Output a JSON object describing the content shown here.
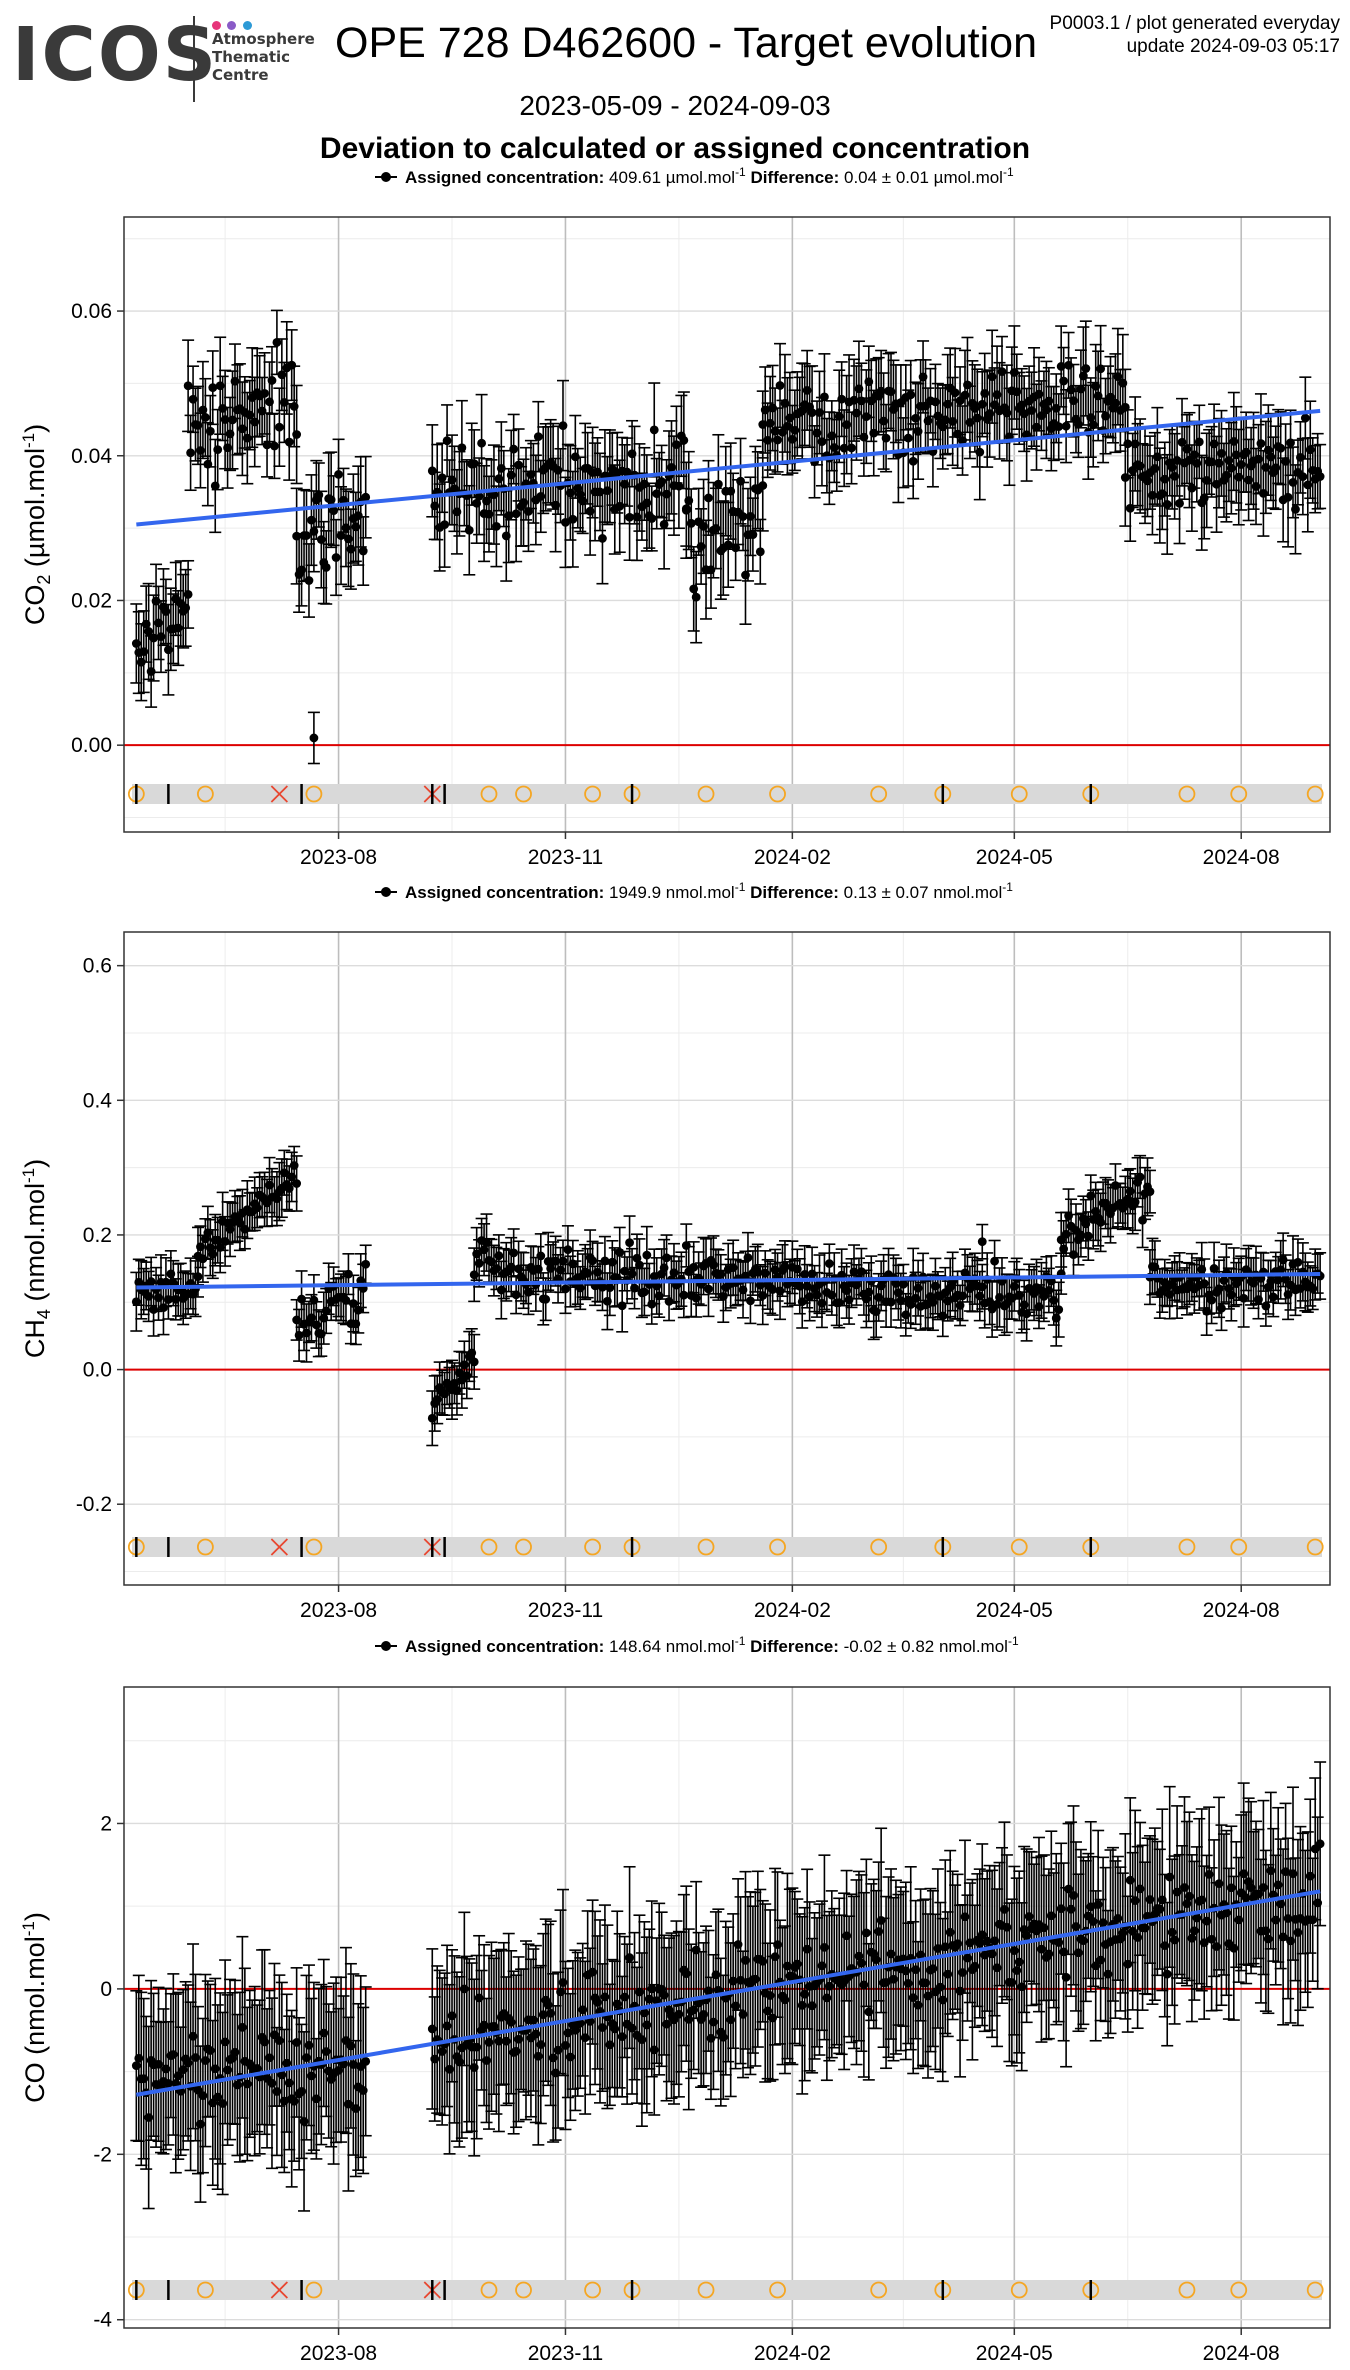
{
  "header": {
    "logo_word": "ICOS",
    "logo_lines": [
      "Atmosphere",
      "Thematic",
      "Centre"
    ],
    "logo_dot_colors": [
      "#e6357a",
      "#8a5bc7",
      "#2d9ad6"
    ],
    "title": "OPE 728 D462600 - Target evolution",
    "info_line1": "P0003.1 / plot generated everyday",
    "info_line2": "update  2024-09-03 05:17",
    "date_range": "2023-05-09 - 2024-09-03",
    "subtitle": "Deviation to calculated or assigned concentration"
  },
  "colors": {
    "points": "#000000",
    "trend": "#3366ee",
    "zero_line": "#dd0000",
    "marker_circle": "#f5a623",
    "marker_cross": "#e8462f",
    "marker_band": "#d9d9d9"
  },
  "x_tick_labels": [
    "2023-08",
    "2023-11",
    "2024-02",
    "2024-05",
    "2024-08"
  ],
  "x_tick_dates": [
    "2023-08-01",
    "2023-11-01",
    "2024-02-01",
    "2024-05-01",
    "2024-08-01"
  ],
  "event_markers": [
    {
      "date": "2023-05-11",
      "type": "circle"
    },
    {
      "date": "2023-05-11",
      "type": "vline"
    },
    {
      "date": "2023-05-24",
      "type": "vline"
    },
    {
      "date": "2023-06-08",
      "type": "circle"
    },
    {
      "date": "2023-07-08",
      "type": "cross"
    },
    {
      "date": "2023-07-17",
      "type": "vline"
    },
    {
      "date": "2023-07-22",
      "type": "circle"
    },
    {
      "date": "2023-09-08",
      "type": "cross"
    },
    {
      "date": "2023-09-08",
      "type": "vline"
    },
    {
      "date": "2023-09-13",
      "type": "vline"
    },
    {
      "date": "2023-10-01",
      "type": "circle"
    },
    {
      "date": "2023-10-15",
      "type": "circle"
    },
    {
      "date": "2023-11-12",
      "type": "circle"
    },
    {
      "date": "2023-11-28",
      "type": "circle"
    },
    {
      "date": "2023-11-28",
      "type": "vline"
    },
    {
      "date": "2023-12-28",
      "type": "circle"
    },
    {
      "date": "2024-01-26",
      "type": "circle"
    },
    {
      "date": "2024-03-07",
      "type": "circle"
    },
    {
      "date": "2024-04-02",
      "type": "circle"
    },
    {
      "date": "2024-04-02",
      "type": "vline"
    },
    {
      "date": "2024-05-03",
      "type": "circle"
    },
    {
      "date": "2024-06-01",
      "type": "circle"
    },
    {
      "date": "2024-06-01",
      "type": "vline"
    },
    {
      "date": "2024-07-10",
      "type": "circle"
    },
    {
      "date": "2024-07-31",
      "type": "circle"
    },
    {
      "date": "2024-08-31",
      "type": "circle"
    }
  ],
  "chart_data": [
    {
      "type": "scatter",
      "species": "CO2",
      "ylabel": "CO2 (µmol.mol-1)",
      "ylabel_main": "CO",
      "ylabel_sub": "2",
      "ylabel_unit": "µmol.mol",
      "legend_label": "Assigned concentration:",
      "assigned_value": "409.61 µmol.mol",
      "difference_label": "Difference:",
      "difference_value": "0.04 ± 0.01 µmol.mol",
      "unit_exponent": "-1",
      "xlim": [
        "2023-05-06",
        "2024-09-06"
      ],
      "ylim": [
        -0.012,
        0.073
      ],
      "y_ticks": [
        0.0,
        0.02,
        0.04,
        0.06
      ],
      "y_tick_labels": [
        "0.00",
        "0.02",
        "0.04",
        "0.06"
      ],
      "trend": {
        "start": [
          "2023-05-11",
          0.0305
        ],
        "end": [
          "2024-09-02",
          0.0462
        ]
      },
      "zero_line": 0,
      "error_bar": 0.0055,
      "segments": [
        {
          "start": "2023-05-11",
          "end": "2023-06-01",
          "base": 0.012,
          "slope_end": 0.02,
          "noise": 0.004
        },
        {
          "start": "2023-06-01",
          "end": "2023-07-15",
          "base": 0.045,
          "slope_end": 0.046,
          "noise": 0.006
        },
        {
          "start": "2023-07-15",
          "end": "2023-08-12",
          "base": 0.03,
          "slope_end": 0.03,
          "noise": 0.006
        },
        {
          "start": "2023-09-08",
          "end": "2023-12-20",
          "base": 0.035,
          "slope_end": 0.036,
          "noise": 0.006
        },
        {
          "start": "2023-12-20",
          "end": "2024-01-20",
          "base": 0.028,
          "slope_end": 0.033,
          "noise": 0.007
        },
        {
          "start": "2024-01-20",
          "end": "2024-06-15",
          "base": 0.045,
          "slope_end": 0.047,
          "noise": 0.005
        },
        {
          "start": "2024-06-15",
          "end": "2024-09-02",
          "base": 0.038,
          "slope_end": 0.039,
          "noise": 0.005
        }
      ],
      "outliers": [
        [
          "2023-07-22",
          0.001
        ]
      ]
    },
    {
      "type": "scatter",
      "species": "CH4",
      "ylabel": "CH4 (nmol.mol-1)",
      "ylabel_main": "CH",
      "ylabel_sub": "4",
      "ylabel_unit": "nmol.mol",
      "legend_label": "Assigned concentration:",
      "assigned_value": "1949.9 nmol.mol",
      "difference_label": "Difference:",
      "difference_value": "0.13 ± 0.07 nmol.mol",
      "unit_exponent": "-1",
      "xlim": [
        "2023-05-06",
        "2024-09-06"
      ],
      "ylim": [
        -0.32,
        0.65
      ],
      "y_ticks": [
        -0.2,
        0.0,
        0.2,
        0.4,
        0.6
      ],
      "y_tick_labels": [
        "-0.2",
        "0.0",
        "0.2",
        "0.4",
        "0.6"
      ],
      "trend": {
        "start": [
          "2023-05-11",
          0.122
        ],
        "end": [
          "2024-09-02",
          0.142
        ]
      },
      "zero_line": 0,
      "error_bar": 0.035,
      "segments": [
        {
          "start": "2023-05-11",
          "end": "2023-06-05",
          "base": 0.11,
          "slope_end": 0.12,
          "noise": 0.025
        },
        {
          "start": "2023-06-05",
          "end": "2023-07-15",
          "base": 0.17,
          "slope_end": 0.29,
          "noise": 0.025
        },
        {
          "start": "2023-07-15",
          "end": "2023-08-12",
          "base": 0.07,
          "slope_end": 0.1,
          "noise": 0.04
        },
        {
          "start": "2023-09-08",
          "end": "2023-09-25",
          "base": -0.06,
          "slope_end": 0.02,
          "noise": 0.02
        },
        {
          "start": "2023-09-25",
          "end": "2024-05-20",
          "base": 0.15,
          "slope_end": 0.11,
          "noise": 0.035
        },
        {
          "start": "2024-05-20",
          "end": "2024-06-25",
          "base": 0.19,
          "slope_end": 0.27,
          "noise": 0.03
        },
        {
          "start": "2024-06-25",
          "end": "2024-09-02",
          "base": 0.13,
          "slope_end": 0.13,
          "noise": 0.03
        }
      ],
      "outliers": [
        [
          "2024-04-18",
          0.19
        ]
      ]
    },
    {
      "type": "scatter",
      "species": "CO",
      "ylabel": "CO (nmol.mol-1)",
      "ylabel_main": "CO",
      "ylabel_sub": "",
      "ylabel_unit": "nmol.mol",
      "legend_label": "Assigned concentration:",
      "assigned_value": "148.64 nmol.mol",
      "difference_label": "Difference:",
      "difference_value": "-0.02 ± 0.82 nmol.mol",
      "unit_exponent": "-1",
      "xlim": [
        "2023-05-06",
        "2024-09-06"
      ],
      "ylim": [
        -4.1,
        3.65
      ],
      "y_ticks": [
        -4,
        -2,
        0,
        2
      ],
      "y_tick_labels": [
        "-4",
        "-2",
        "0",
        "2"
      ],
      "trend": {
        "start": [
          "2023-05-11",
          -1.28
        ],
        "end": [
          "2024-09-02",
          1.18
        ]
      },
      "zero_line": 0,
      "error_bar": 0.9,
      "segments": [
        {
          "start": "2023-05-11",
          "end": "2023-08-12",
          "base": -1.0,
          "slope_end": -1.0,
          "noise": 0.45
        },
        {
          "start": "2023-09-08",
          "end": "2024-09-02",
          "base": -0.7,
          "slope_end": 1.2,
          "noise": 0.45
        }
      ],
      "outliers": []
    }
  ]
}
